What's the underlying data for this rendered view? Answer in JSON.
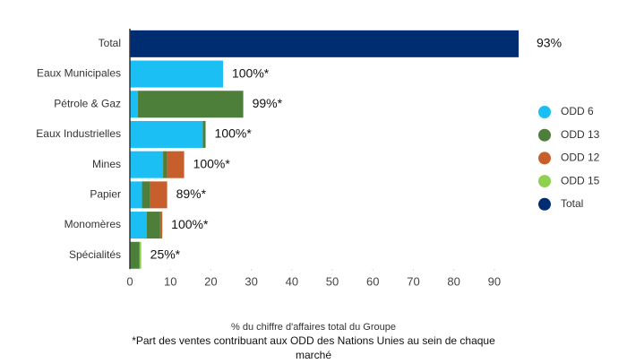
{
  "chart_data": {
    "type": "stacked-barh",
    "categories": [
      "Total",
      "Eaux Municipales",
      "Pétrole & Gaz",
      "Eaux Industrielles",
      "Mines",
      "Papier",
      "Monomères",
      "Spécialités"
    ],
    "series": [
      {
        "name": "ODD 6",
        "color": "#1bbff3",
        "values": [
          0,
          23,
          2,
          18,
          8.2,
          3,
          4.2,
          0
        ]
      },
      {
        "name": "ODD 13",
        "color": "#4e7f3a",
        "values": [
          0,
          0,
          26,
          0.7,
          1,
          2,
          3.3,
          2.4
        ]
      },
      {
        "name": "ODD 12",
        "color": "#c65f2b",
        "values": [
          0,
          0,
          0,
          0,
          4.2,
          4.2,
          0.5,
          0
        ]
      },
      {
        "name": "ODD 15",
        "color": "#8fd14f",
        "values": [
          0,
          0,
          0,
          0,
          0,
          0,
          0,
          0.4
        ]
      },
      {
        "name": "Total",
        "color": "#002d72",
        "values": [
          96,
          0,
          0,
          0,
          0,
          0,
          0,
          0
        ]
      }
    ],
    "annotations": [
      "93%",
      "100%*",
      "99%*",
      "100%*",
      "100%*",
      "89%*",
      "100%*",
      "25%*"
    ],
    "xlim": [
      0,
      96
    ],
    "xticks": [
      0,
      10,
      20,
      30,
      40,
      50,
      60,
      70,
      80,
      90
    ],
    "xlabel": "% du chiffre d'affaires total du Groupe",
    "notes": [
      "*Part des ventes contribuant aux ODD des Nations Unies au sein de chaque",
      "marché"
    ],
    "legend": "right"
  }
}
